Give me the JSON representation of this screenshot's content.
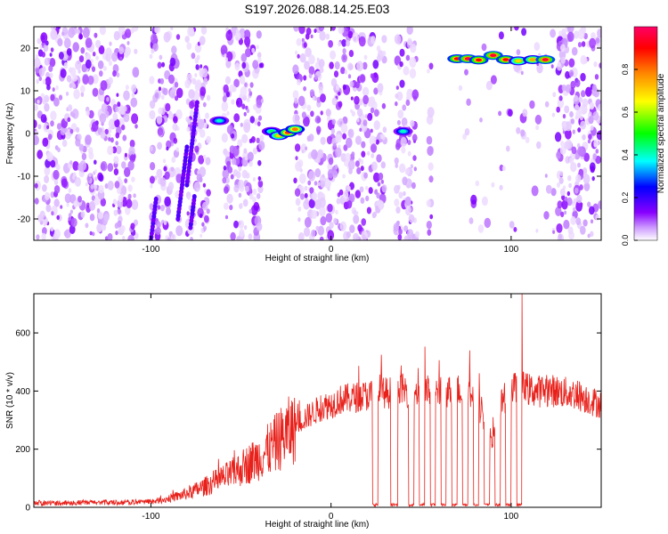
{
  "figure": {
    "title": "S197.2026.088.14.25.E03"
  },
  "chart_data": [
    {
      "type": "heatmap",
      "xlabel": "Height of straight line (km)",
      "ylabel": "Frequency (Hz)",
      "xlim": [
        -165,
        150
      ],
      "ylim": [
        -25,
        25
      ],
      "xticks": [
        -100,
        0,
        100
      ],
      "yticks": [
        -20,
        -10,
        0,
        10,
        20
      ],
      "grid": false,
      "colorbar": {
        "label": "Normalized spectral amplitude",
        "range": [
          0.0,
          1.0
        ],
        "ticks": [
          0.0,
          0.2,
          0.4,
          0.6,
          0.8
        ],
        "tick_labels": [
          "0.0",
          "0.2",
          "0.4",
          "0.6",
          "0.8"
        ],
        "colors": [
          "#ffffff",
          "#cc99ff",
          "#8800ff",
          "#0000ff",
          "#00ffff",
          "#00ff00",
          "#ffff00",
          "#ff8800",
          "#ff0000",
          "#ff0066"
        ]
      },
      "blank_bands_km": [
        [
          -108,
          -100
        ],
        [
          -84,
          -80
        ],
        [
          -68,
          -60
        ],
        [
          -38,
          -20
        ],
        [
          -4,
          -2
        ],
        [
          30,
          36
        ],
        [
          48,
          54
        ],
        [
          56,
          68
        ],
        [
          124,
          126
        ]
      ],
      "features": [
        {
          "x": -33,
          "y": 0.5,
          "amplitude": 0.45
        },
        {
          "x": -29,
          "y": -0.5,
          "amplitude": 0.7
        },
        {
          "x": -24,
          "y": 0.2,
          "amplitude": 0.85
        },
        {
          "x": -20,
          "y": 1.0,
          "amplitude": 0.8
        },
        {
          "x": -62,
          "y": 3.0,
          "amplitude": 0.4
        },
        {
          "x": 40,
          "y": 0.5,
          "amplitude": 0.4
        },
        {
          "x": 70,
          "y": 17.5,
          "amplitude": 0.9
        },
        {
          "x": 76,
          "y": 17.5,
          "amplitude": 0.95
        },
        {
          "x": 82,
          "y": 17.2,
          "amplitude": 0.9
        },
        {
          "x": 90,
          "y": 18.3,
          "amplitude": 0.95
        },
        {
          "x": 97,
          "y": 17.3,
          "amplitude": 0.9
        },
        {
          "x": 104,
          "y": 17.0,
          "amplitude": 0.7
        },
        {
          "x": 112,
          "y": 17.3,
          "amplitude": 0.75
        },
        {
          "x": 119,
          "y": 17.3,
          "amplitude": 0.95
        }
      ]
    },
    {
      "type": "line",
      "xlabel": "Height of straight line (km)",
      "ylabel": "SNR (10 * v/v)",
      "xlim": [
        -165,
        150
      ],
      "ylim": [
        0,
        735
      ],
      "xticks": [
        -100,
        0,
        100
      ],
      "yticks": [
        0,
        200,
        400,
        600
      ],
      "grid": false,
      "series": [
        {
          "color": "#e8201a",
          "x": [
            -165,
            -150,
            -140,
            -130,
            -120,
            -110,
            -100,
            -95,
            -90,
            -85,
            -80,
            -75,
            -70,
            -65,
            -60,
            -55,
            -50,
            -45,
            -40,
            -35,
            -30,
            -25,
            -20,
            -15,
            -10,
            -5,
            0,
            5,
            10,
            15,
            20,
            25,
            30,
            35,
            40,
            45,
            50,
            55,
            60,
            65,
            70,
            75,
            80,
            85,
            90,
            95,
            100,
            105,
            110,
            115,
            120,
            125,
            130,
            135,
            140,
            145,
            150
          ],
          "values": [
            15,
            15,
            16,
            17,
            16,
            18,
            20,
            25,
            32,
            40,
            50,
            62,
            75,
            90,
            105,
            120,
            140,
            160,
            180,
            205,
            235,
            265,
            290,
            310,
            330,
            350,
            360,
            375,
            380,
            385,
            390,
            395,
            400,
            400,
            410,
            400,
            405,
            405,
            400,
            405,
            410,
            400,
            380,
            310,
            230,
            370,
            410,
            420,
            410,
            405,
            410,
            405,
            400,
            395,
            385,
            370,
            360
          ],
          "dropouts_to_zero_km": [
            [
              23,
              26
            ],
            [
              33,
              37
            ],
            [
              43,
              46
            ],
            [
              49,
              52
            ],
            [
              55,
              58
            ],
            [
              61,
              64
            ],
            [
              67,
              70
            ],
            [
              73,
              76
            ],
            [
              79,
              82
            ],
            [
              85,
              88
            ],
            [
              91,
              94
            ],
            [
              97,
              100
            ],
            [
              103,
              106
            ]
          ],
          "peaks": [
            {
              "x": 106,
              "y": 735
            },
            {
              "x": 77,
              "y": 540
            },
            {
              "x": 28,
              "y": 525
            }
          ]
        }
      ]
    }
  ]
}
